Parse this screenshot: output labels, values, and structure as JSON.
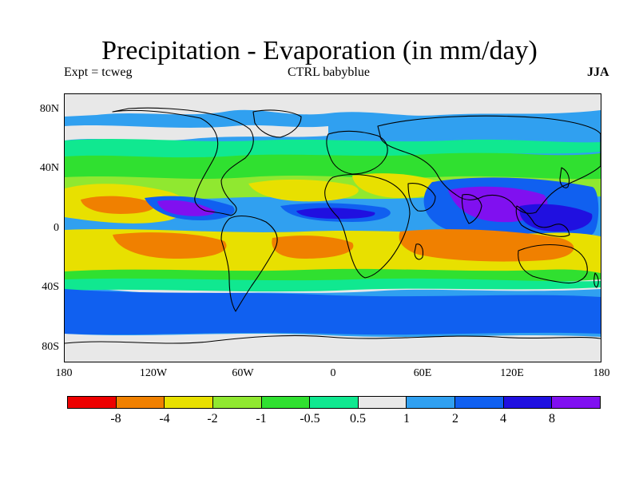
{
  "title": "Precipitation - Evaporation (in mm/day)",
  "subtitle_left": "Expt = tcweg",
  "subtitle_center": "CTRL babyblue",
  "subtitle_right": "JJA",
  "y_ticks": [
    "80N",
    "40N",
    "0",
    "40S",
    "80S"
  ],
  "x_ticks": [
    "180",
    "120W",
    "60W",
    "0",
    "60E",
    "120E",
    "180"
  ],
  "colorbar": {
    "colors": [
      "#ee0000",
      "#f08000",
      "#e8e000",
      "#90e830",
      "#30e030",
      "#10e890",
      "#e8e8e8",
      "#30a0f0",
      "#1060f0",
      "#2010e0",
      "#8010f0"
    ],
    "labels": [
      "-8",
      "-4",
      "-2",
      "-1",
      "-0.5",
      "0.5",
      "1",
      "2",
      "4",
      "8"
    ]
  },
  "map": {
    "x_range": [
      -180,
      180
    ],
    "y_range": [
      -90,
      90
    ],
    "fields": {
      "base": "#30a0f0",
      "polar_grey": "#e8e8e8",
      "dry": "#e8e000",
      "very_dry": "#f08000",
      "green": "#30e030",
      "teal": "#10e890",
      "light_green": "#90e830",
      "blue": "#1060f0",
      "deep_blue": "#2010e0",
      "purple": "#8010f0"
    }
  }
}
